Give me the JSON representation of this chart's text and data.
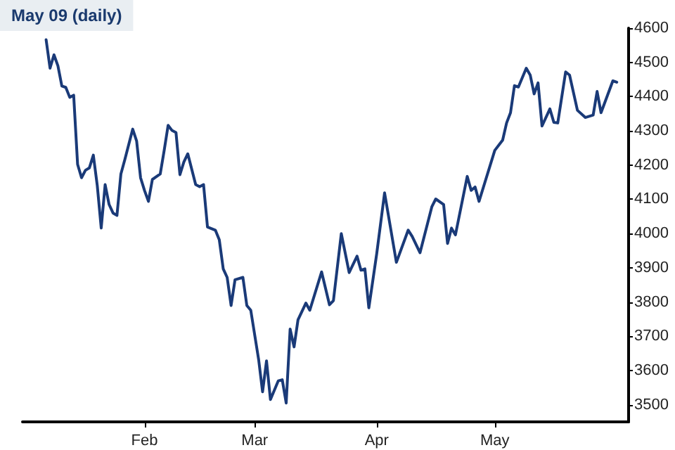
{
  "chart_data": {
    "type": "line",
    "title": "May 09 (daily)",
    "color": "#1a3a78",
    "x": [
      "--01-07",
      "--01-08",
      "--01-09",
      "--01-10",
      "--01-11",
      "--01-12",
      "--01-13",
      "--01-14",
      "--01-15",
      "--01-16",
      "--01-17",
      "--01-18",
      "--01-19",
      "--01-20",
      "--01-21",
      "--01-22",
      "--01-23",
      "--01-24",
      "--01-25",
      "--01-26",
      "--01-27",
      "--01-29",
      "--01-30",
      "--01-31",
      "--02-01",
      "--02-02",
      "--02-03",
      "--02-05",
      "--02-06",
      "--02-07",
      "--02-08",
      "--02-09",
      "--02-10",
      "--02-11",
      "--02-12",
      "--02-14",
      "--02-15",
      "--02-16",
      "--02-17",
      "--02-19",
      "--02-20",
      "--02-21",
      "--02-22",
      "--02-23",
      "--02-24",
      "--02-26",
      "--02-27",
      "--02-28",
      "--03-02",
      "--03-03",
      "--03-04",
      "--03-05",
      "--03-07",
      "--03-08",
      "--03-09",
      "--03-10",
      "--03-11",
      "--03-12",
      "--03-14",
      "--03-15",
      "--03-18",
      "--03-20",
      "--03-21",
      "--03-23",
      "--03-25",
      "--03-27",
      "--03-28",
      "--03-29",
      "--03-30",
      "--04-01",
      "--04-03",
      "--04-06",
      "--04-09",
      "--04-10",
      "--04-12",
      "--04-15",
      "--04-16",
      "--04-18",
      "--04-19",
      "--04-20",
      "--04-21",
      "--04-24",
      "--04-25",
      "--04-26",
      "--04-27",
      "--05-01",
      "--05-03",
      "--05-04",
      "--05-05",
      "--05-06",
      "--05-07",
      "--05-09",
      "--05-10",
      "--05-11",
      "--05-12",
      "--05-13",
      "--05-15",
      "--05-16",
      "--05-17",
      "--05-19",
      "--05-20",
      "--05-22",
      "--05-24",
      "--05-26",
      "--05-27",
      "--05-28",
      "--05-31",
      "--06-01"
    ],
    "values": [
      4566,
      4483,
      4522,
      4490,
      4431,
      4427,
      4398,
      4404,
      4202,
      4163,
      4185,
      4192,
      4229,
      4140,
      4016,
      4143,
      4085,
      4060,
      4053,
      4174,
      4216,
      4305,
      4270,
      4163,
      4126,
      4094,
      4158,
      4174,
      4243,
      4316,
      4301,
      4295,
      4172,
      4209,
      4233,
      4143,
      4137,
      4143,
      4019,
      4010,
      3982,
      3897,
      3872,
      3790,
      3865,
      3872,
      3790,
      3776,
      3632,
      3538,
      3628,
      3515,
      3570,
      3573,
      3505,
      3721,
      3669,
      3748,
      3797,
      3776,
      3888,
      3792,
      3804,
      4000,
      3886,
      3934,
      3893,
      3897,
      3783,
      3941,
      4119,
      3916,
      4010,
      3992,
      3944,
      4078,
      4101,
      4085,
      3971,
      4016,
      3996,
      4167,
      4126,
      4136,
      4094,
      4243,
      4273,
      4323,
      4353,
      4432,
      4428,
      4483,
      4463,
      4408,
      4440,
      4314,
      4364,
      4325,
      4323,
      4472,
      4463,
      4360,
      4339,
      4346,
      4415,
      4353,
      4446,
      4442
    ],
    "xlim": [
      "--01-01",
      "--06-04"
    ],
    "xticks": [
      {
        "value": "--02-01",
        "label": "Feb"
      },
      {
        "value": "--03-01",
        "label": "Mar"
      },
      {
        "value": "--04-01",
        "label": "Apr"
      },
      {
        "value": "--05-01",
        "label": "May"
      }
    ],
    "ylim": [
      3450,
      4600
    ],
    "yticks": [
      3500,
      3600,
      3700,
      3800,
      3900,
      4000,
      4100,
      4200,
      4300,
      4400,
      4500,
      4600
    ],
    "grid": false,
    "marker": "none",
    "line_style": "solid"
  }
}
